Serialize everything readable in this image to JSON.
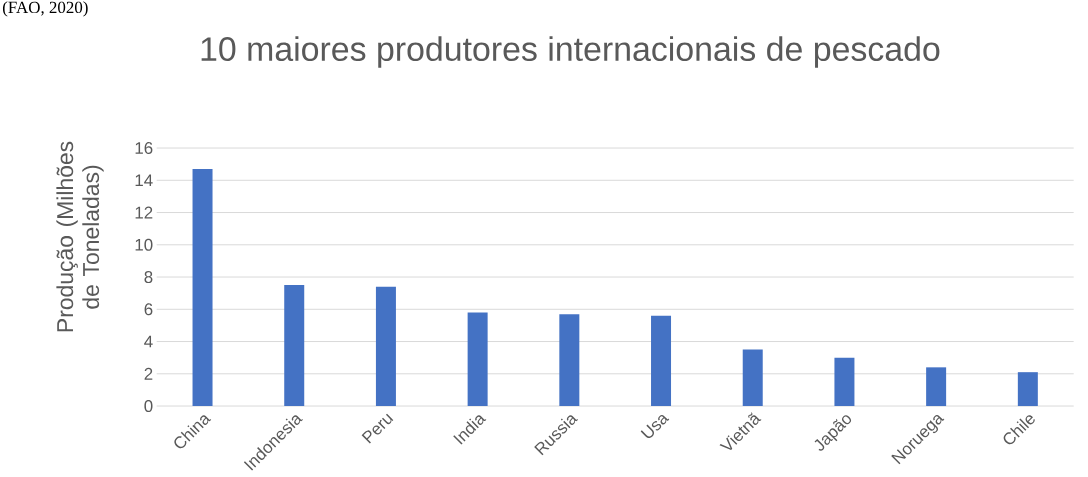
{
  "chart_data": {
    "type": "bar",
    "title": "10 maiores produtores internacionais de pescado",
    "ylabel": "Produção (Milhões de Toneladas)",
    "annotations": [
      "(FAO, 2020)"
    ],
    "categories": [
      "China",
      "Indonesia",
      "Peru",
      "India",
      "Russia",
      "Usa",
      "Vietnã",
      "Japão",
      "Noruega",
      "Chile"
    ],
    "values": [
      14.7,
      7.5,
      7.4,
      5.8,
      5.7,
      5.6,
      3.5,
      3.0,
      2.4,
      2.1
    ],
    "color": "#4472c4",
    "ylim": [
      0,
      16
    ],
    "yticks": [
      0,
      2,
      4,
      6,
      8,
      10,
      12,
      14,
      16
    ],
    "grid": "y"
  }
}
